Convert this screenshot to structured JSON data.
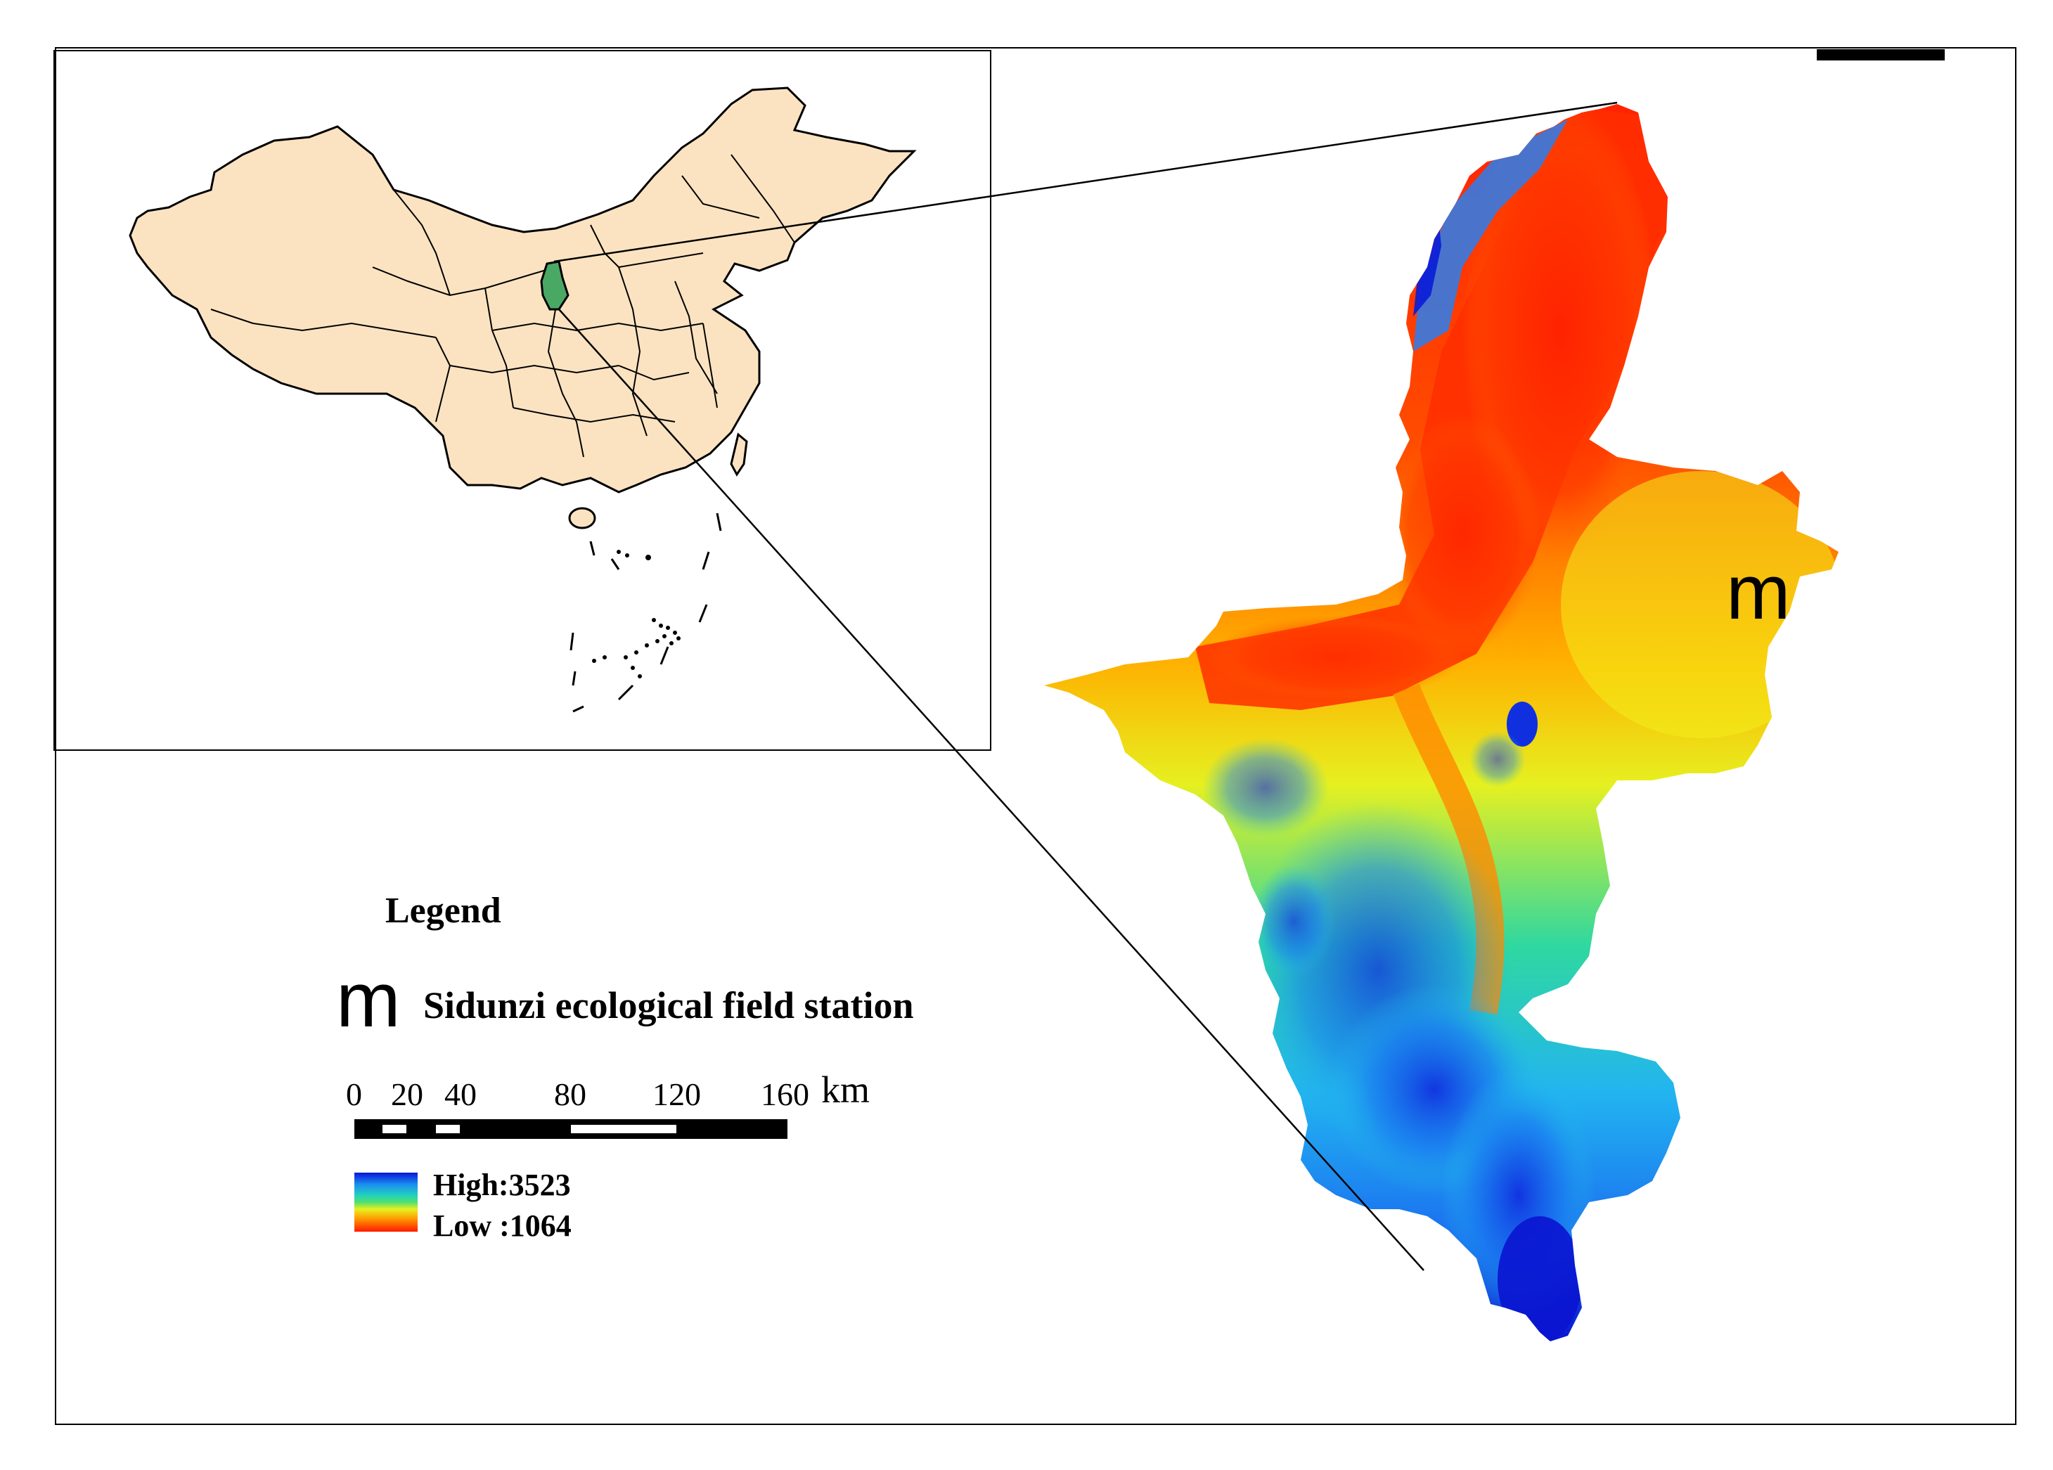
{
  "legend": {
    "title": "Legend",
    "station_symbol": "m",
    "station_label": "Sidunzi ecological field station"
  },
  "map_marker": {
    "symbol": "m"
  },
  "scale_bar": {
    "ticks": [
      "0",
      "20",
      "40",
      "80",
      "120",
      "160"
    ],
    "unit": "km"
  },
  "elevation_ramp": {
    "high_label": "High:3523",
    "low_label": "Low :1064",
    "high_value": 3523,
    "low_value": 1064,
    "colors_high_to_low": [
      "#0a14d8",
      "#1a8ff0",
      "#22c4e0",
      "#2fd58c",
      "#d8f020",
      "#ffcf00",
      "#ff7a00",
      "#ff2000"
    ]
  },
  "inset_map": {
    "land_color": "#fbe3c1",
    "highlight_color": "#4aa865",
    "border_color": "#000000"
  }
}
